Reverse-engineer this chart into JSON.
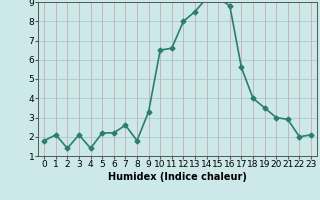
{
  "xlabel": "Humidex (Indice chaleur)",
  "x_values": [
    0,
    1,
    2,
    3,
    4,
    5,
    6,
    7,
    8,
    9,
    10,
    11,
    12,
    13,
    14,
    15,
    16,
    17,
    18,
    19,
    20,
    21,
    22,
    23
  ],
  "y_values": [
    1.8,
    2.1,
    1.4,
    2.1,
    1.4,
    2.2,
    2.2,
    2.6,
    1.8,
    3.3,
    6.5,
    6.6,
    8.0,
    8.5,
    9.2,
    9.2,
    8.8,
    5.6,
    4.0,
    3.5,
    3.0,
    2.9,
    2.0,
    2.1
  ],
  "line_color": "#2d7d6e",
  "marker": "D",
  "marker_size": 2.5,
  "line_width": 1.2,
  "bg_color": "#cce8e8",
  "grid_color_v": "#c8a0a0",
  "grid_color_h": "#a0c8c8",
  "ylim": [
    1,
    9
  ],
  "yticks": [
    1,
    2,
    3,
    4,
    5,
    6,
    7,
    8,
    9
  ],
  "xticks": [
    0,
    1,
    2,
    3,
    4,
    5,
    6,
    7,
    8,
    9,
    10,
    11,
    12,
    13,
    14,
    15,
    16,
    17,
    18,
    19,
    20,
    21,
    22,
    23
  ],
  "xlabel_fontsize": 7,
  "tick_fontsize": 6.5
}
